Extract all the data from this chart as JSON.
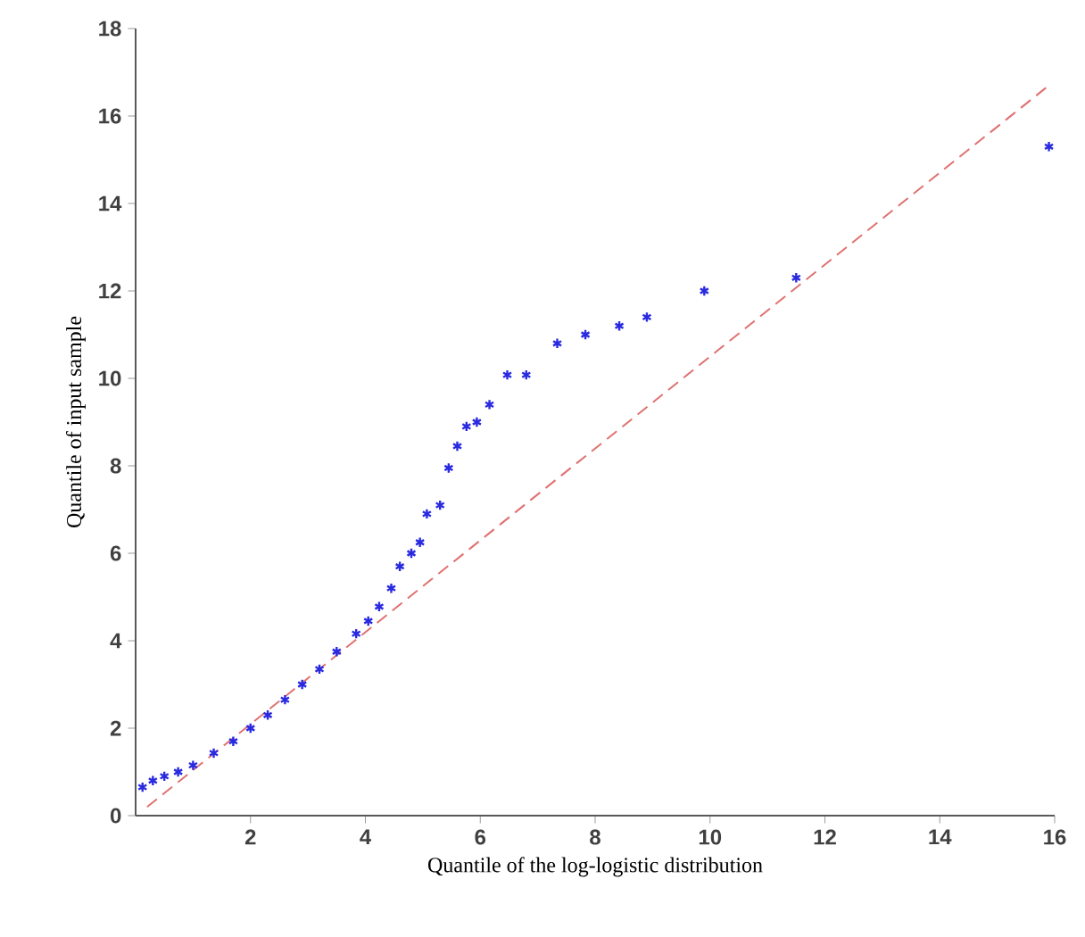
{
  "chart_data": {
    "type": "scatter",
    "xlabel": "Quantile of the log-logistic distribution",
    "ylabel": "Quantile of input sample",
    "xlim": [
      0,
      16
    ],
    "ylim": [
      0,
      18
    ],
    "xticks": [
      2,
      4,
      6,
      8,
      10,
      12,
      14,
      16
    ],
    "yticks": [
      0,
      2,
      4,
      6,
      8,
      10,
      12,
      14,
      16,
      18
    ],
    "grid": false,
    "marker": "cross",
    "series": [
      {
        "color": "#2a2ae0",
        "x": [
          0.12,
          0.3,
          0.5,
          0.74,
          1.0,
          1.36,
          1.7,
          2.0,
          2.3,
          2.6,
          2.9,
          3.2,
          3.5,
          3.84,
          4.05,
          4.24,
          4.45,
          4.6,
          4.8,
          4.95,
          5.07,
          5.3,
          5.45,
          5.6,
          5.76,
          5.94,
          6.16,
          6.47,
          6.8,
          7.34,
          7.83,
          8.42,
          8.9,
          9.9,
          11.5,
          15.9
        ],
        "values": [
          0.65,
          0.8,
          0.9,
          1.0,
          1.15,
          1.43,
          1.7,
          2.0,
          2.3,
          2.65,
          3.0,
          3.35,
          3.75,
          4.16,
          4.45,
          4.78,
          5.2,
          5.7,
          6.0,
          6.25,
          6.9,
          7.1,
          7.95,
          8.45,
          8.9,
          9.0,
          9.4,
          10.08,
          10.08,
          10.8,
          11.0,
          11.2,
          11.4,
          12.0,
          12.3,
          15.3
        ]
      },
      {
        "type": "line",
        "line_style": "dashed",
        "marker": "none",
        "color": "#e07070",
        "x": [
          0.2,
          15.9
        ],
        "values": [
          0.2,
          16.7
        ]
      }
    ]
  }
}
